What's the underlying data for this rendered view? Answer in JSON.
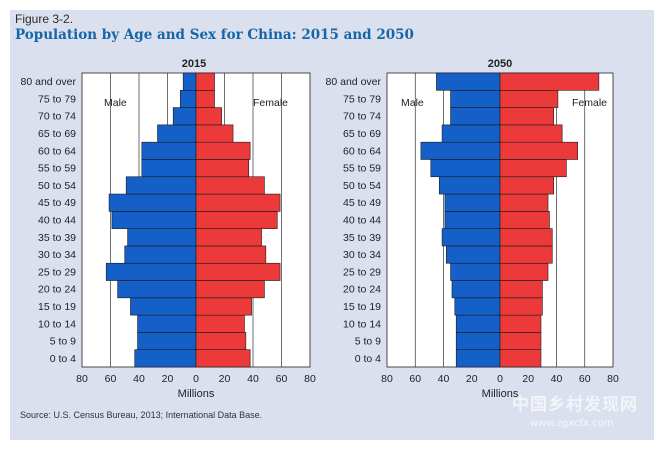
{
  "figure_label": "Figure 3-2.",
  "title": "Population by Age and Sex for China: 2015 and 2050",
  "source": "Source: U.S. Census Bureau, 2013; International Data Base.",
  "watermark": {
    "text": "中国乡村发现网",
    "url": "www.zgxcfx.com"
  },
  "colors": {
    "male": "#1560c8",
    "female": "#ec3a3a",
    "frame": "#dbe0ee",
    "plot": "#ffffff",
    "title": "#1565a8"
  },
  "chart_data": [
    {
      "type": "bar",
      "orientation": "horizontal-pyramid",
      "title": "2015",
      "xlabel": "Millions",
      "xlim": [
        -80,
        80
      ],
      "xticks": [
        -80,
        -60,
        -40,
        -20,
        0,
        20,
        40,
        60,
        80
      ],
      "xtick_labels": [
        "80",
        "60",
        "40",
        "20",
        "0",
        "20",
        "40",
        "60",
        "80"
      ],
      "grid": true,
      "categories": [
        "0 to 4",
        "5 to 9",
        "10 to 14",
        "15 to 19",
        "20 to 24",
        "25 to 29",
        "30 to 34",
        "35 to 39",
        "40 to 44",
        "45 to 49",
        "50 to 54",
        "55 to 59",
        "60 to 64",
        "65 to 69",
        "70 to 74",
        "75 to 79",
        "80 and over"
      ],
      "series": [
        {
          "name": "Male",
          "values": [
            43,
            41,
            41,
            46,
            55,
            63,
            50,
            48,
            59,
            61,
            49,
            38,
            38,
            27,
            16,
            11,
            9
          ]
        },
        {
          "name": "Female",
          "values": [
            38,
            35,
            34,
            39,
            48,
            59,
            49,
            46,
            57,
            59,
            48,
            37,
            38,
            26,
            18,
            13,
            13
          ]
        }
      ],
      "annotations": [
        "Male",
        "Female"
      ]
    },
    {
      "type": "bar",
      "orientation": "horizontal-pyramid",
      "title": "2050",
      "xlabel": "Millions",
      "xlim": [
        -80,
        80
      ],
      "xticks": [
        -80,
        -60,
        -40,
        -20,
        0,
        20,
        40,
        60,
        80
      ],
      "xtick_labels": [
        "80",
        "60",
        "40",
        "20",
        "0",
        "20",
        "40",
        "60",
        "80"
      ],
      "grid": true,
      "categories": [
        "0 to 4",
        "5 to 9",
        "10 to 14",
        "15 to 19",
        "20 to 24",
        "25 to 29",
        "30 to 34",
        "35 to 39",
        "40 to 44",
        "45 to 49",
        "50 to 54",
        "55 to 59",
        "60 to 64",
        "65 to 69",
        "70 to 74",
        "75 to 79",
        "80 and over"
      ],
      "series": [
        {
          "name": "Male",
          "values": [
            31,
            31,
            31,
            32,
            34,
            35,
            38,
            41,
            39,
            39,
            43,
            49,
            56,
            41,
            35,
            35,
            45
          ]
        },
        {
          "name": "Female",
          "values": [
            29,
            29,
            29,
            30,
            30,
            34,
            37,
            37,
            35,
            34,
            38,
            47,
            55,
            44,
            38,
            41,
            70
          ]
        }
      ],
      "annotations": [
        "Male",
        "Female"
      ]
    }
  ]
}
